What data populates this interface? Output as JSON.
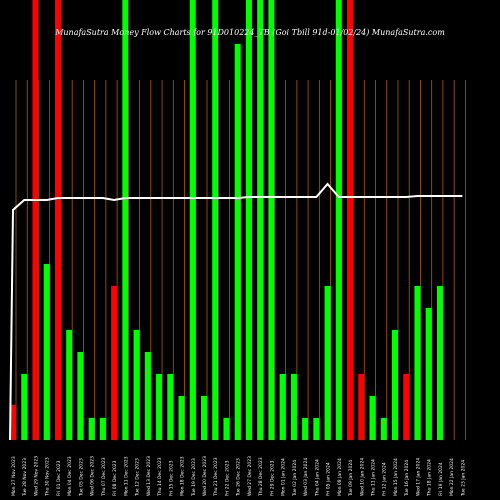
{
  "header": {
    "title": "MunafaSutra  Money Flow  Charts for 91D010224_TB                    (Goi   Tbill 91d-01/02/24) MunafaSutra.com"
  },
  "chart_data": {
    "type": "bar",
    "title": "MunafaSutra  Money Flow  Charts for 91D010224_TB                    (Goi   Tbill 91d-01/02/24) MunafaSutra.com",
    "categories": [
      "Mon 27 Nov 2023",
      "Tue 28 Nov 2023",
      "Wed 29 Nov 2023",
      "Thu 30 Nov 2023",
      "Fri 01 Dec 2023",
      "Mon 04 Dec 2023",
      "Tue 05 Dec 2023",
      "Wed 06 Dec 2023",
      "Thu 07 Dec 2023",
      "Fri 08 Dec 2023",
      "Mon 11 Dec 2023",
      "Tue 12 Dec 2023",
      "Wed 13 Dec 2023",
      "Thu 14 Dec 2023",
      "Fri 15 Dec 2023",
      "Mon 18 Dec 2023",
      "Tue 19 Dec 2023",
      "Wed 20 Dec 2023",
      "Thu 21 Dec 2023",
      "Fri 22 Dec 2023",
      "Tue 26 Dec 2023",
      "Wed 27 Dec 2023",
      "Thu 28 Dec 2023",
      "Fri 29 Dec 2023",
      "Mon 01 Jan 2024",
      "Tue 02 Jan 2024",
      "Wed 03 Jan 2024",
      "Thu 04 Jan 2024",
      "Fri 05 Jan 2024",
      "Mon 08 Jan 2024",
      "Tue 09 Jan 2024",
      "Wed 10 Jan 2024",
      "Thu 11 Jan 2024",
      "Fri 12 Jan 2024",
      "Mon 15 Jan 2024",
      "Tue 16 Jan 2024",
      "Wed 17 Jan 2024",
      "Thu 18 Jan 2024",
      "Fri 19 Jan 2024",
      "Mon 22 Jan 2024",
      "Tue 23 Jan 2024"
    ],
    "series": [
      {
        "values": [
          0.08,
          0.15,
          1.0,
          0.4,
          1.0,
          0.25,
          0.2,
          0.05,
          0.05,
          0.35,
          1.0,
          0.25,
          0.2,
          0.15,
          0.15,
          0.1,
          1.0,
          0.1,
          1.0,
          0.05,
          0.9,
          1.0,
          1.0,
          1.0,
          0.15,
          0.15,
          0.05,
          0.05,
          0.35,
          1.0,
          1.0,
          0.15,
          0.1,
          0.05,
          0.25,
          0.15,
          0.35,
          0.3,
          0.35,
          0.0,
          0.0
        ],
        "colors": [
          "red",
          "green",
          "red",
          "green",
          "red",
          "green",
          "green",
          "green",
          "green",
          "red",
          "green",
          "green",
          "green",
          "green",
          "green",
          "green",
          "green",
          "green",
          "green",
          "green",
          "green",
          "green",
          "green",
          "green",
          "green",
          "green",
          "green",
          "green",
          "green",
          "green",
          "red",
          "red",
          "green",
          "green",
          "green",
          "red",
          "green",
          "green",
          "green",
          "green",
          "green"
        ]
      },
      {
        "values": [
          0.9,
          0.95,
          0.95,
          0.95,
          0.96,
          0.96,
          0.96,
          0.96,
          0.96,
          0.95,
          0.96,
          0.96,
          0.96,
          0.96,
          0.96,
          0.96,
          0.96,
          0.96,
          0.96,
          0.96,
          0.96,
          0.965,
          0.965,
          0.965,
          0.965,
          0.965,
          0.965,
          0.965,
          1.03,
          0.965,
          0.965,
          0.965,
          0.965,
          0.965,
          0.965,
          0.965,
          0.97,
          0.97,
          0.97,
          0.97,
          0.97
        ],
        "colors": [
          "white"
        ]
      }
    ],
    "grid": true,
    "legend": "none"
  }
}
